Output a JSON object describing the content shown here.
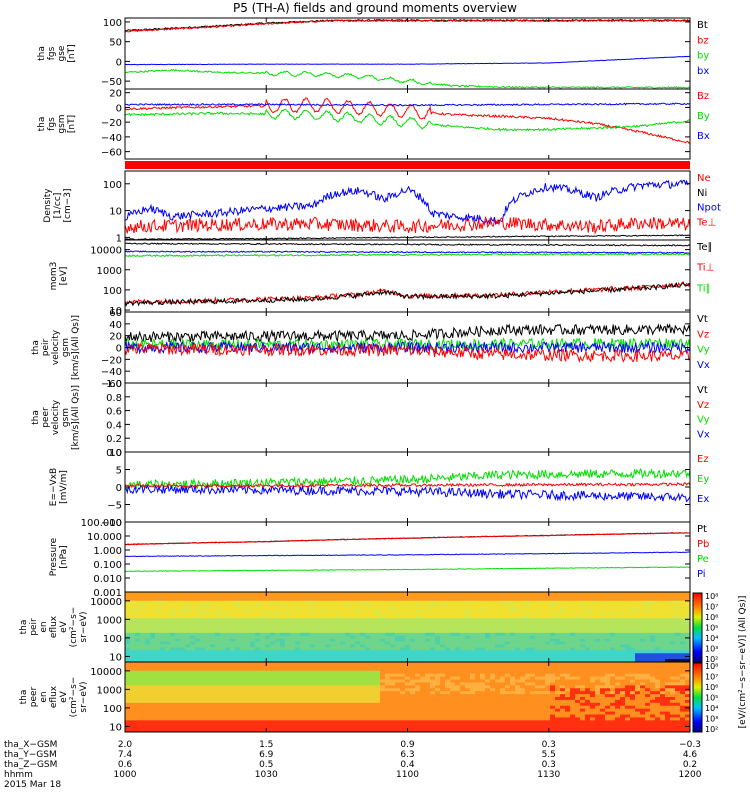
{
  "title": "P5 (TH-A) fields and ground moments overview",
  "date_label": "2015 Mar 18",
  "colors": {
    "black": "#000000",
    "red": "#ff0000",
    "green": "#00dd00",
    "blue": "#0000ff",
    "grid": "#000000"
  },
  "chart_data": [
    {
      "type": "line",
      "id": "fgs_gse",
      "ylabel": [
        "tha",
        "fgs",
        "gse",
        "[nT]"
      ],
      "ylim": [
        -70,
        110
      ],
      "scale": "linear",
      "yticks": [
        {
          "v": 100,
          "t": "100"
        },
        {
          "v": 50,
          "t": "50"
        },
        {
          "v": 0,
          "t": "0"
        },
        {
          "v": -50,
          "t": "−50"
        }
      ],
      "legend": [
        {
          "t": "Bt",
          "c": "black"
        },
        {
          "t": "bz",
          "c": "red"
        },
        {
          "t": "by",
          "c": "green"
        },
        {
          "t": "bx",
          "c": "blue"
        }
      ],
      "series": [
        {
          "name": "Bt",
          "color": "black",
          "x": [
            1000,
            1010,
            1020,
            1030,
            1040,
            1045
          ],
          "y": [
            78,
            84,
            90,
            97,
            102,
            104
          ],
          "noise": 2
        },
        {
          "name": "bz",
          "color": "red",
          "x": [
            1000,
            1010,
            1020,
            1030,
            1040,
            1045
          ],
          "y": [
            76,
            82,
            88,
            95,
            101,
            103
          ],
          "noise": 2
        },
        {
          "name": "by",
          "color": "green",
          "x": [
            1000,
            1010,
            1020,
            1030,
            1040,
            1050,
            1100,
            1110,
            1120,
            1130,
            1140,
            1150,
            1200
          ],
          "y": [
            -28,
            -22,
            -28,
            -30,
            -32,
            -38,
            -50,
            -62,
            -65,
            -66,
            -66,
            -66,
            -66
          ],
          "noise": 2,
          "wave": [
            1030,
            1105,
            10
          ]
        },
        {
          "name": "bx",
          "color": "blue",
          "x": [
            1000,
            1030,
            1100,
            1130,
            1200
          ],
          "y": [
            -8,
            -7,
            -7,
            -4,
            13
          ],
          "noise": 0.5
        }
      ]
    },
    {
      "type": "line",
      "id": "fgs_gsm",
      "ylabel": [
        "tha",
        "fgs",
        "gsm",
        "[nT]"
      ],
      "ylim": [
        -70,
        25
      ],
      "scale": "linear",
      "yticks": [
        {
          "v": 20,
          "t": "20"
        },
        {
          "v": 0,
          "t": "0"
        },
        {
          "v": -20,
          "t": "−20"
        },
        {
          "v": -40,
          "t": "−40"
        },
        {
          "v": -60,
          "t": "−60"
        }
      ],
      "legend": [
        {
          "t": "Bz",
          "c": "red"
        },
        {
          "t": "By",
          "c": "green"
        },
        {
          "t": "Bx",
          "c": "blue"
        }
      ],
      "series": [
        {
          "name": "Bz",
          "color": "red",
          "x": [
            1000,
            1020,
            1040,
            1100,
            1110,
            1120,
            1130,
            1140,
            1150,
            1200
          ],
          "y": [
            -2,
            1,
            3,
            -5,
            -10,
            -12,
            -15,
            -22,
            -34,
            -48
          ],
          "noise": 1.5,
          "wave": [
            1030,
            1105,
            18
          ]
        },
        {
          "name": "By",
          "color": "green",
          "x": [
            1000,
            1020,
            1040,
            1100,
            1110,
            1120,
            1130,
            1140,
            1150,
            1200
          ],
          "y": [
            -10,
            -8,
            -10,
            -20,
            -26,
            -30,
            -30,
            -28,
            -25,
            -18
          ],
          "noise": 1.5,
          "wave": [
            1030,
            1105,
            12
          ]
        },
        {
          "name": "Bx",
          "color": "blue",
          "x": [
            1000,
            1030,
            1100,
            1130,
            1200
          ],
          "y": [
            4,
            4,
            3,
            4,
            5
          ],
          "noise": 1
        }
      ]
    },
    {
      "type": "bar_strip",
      "id": "status",
      "color": "red"
    },
    {
      "type": "line",
      "id": "density",
      "ylabel": [
        "Density",
        "[1/cc]",
        "[cm−3]"
      ],
      "ylim": [
        0.8,
        300
      ],
      "scale": "log",
      "yticks": [
        {
          "v": 100,
          "t": "100"
        },
        {
          "v": 10,
          "t": "10"
        },
        {
          "v": 1,
          "t": "1"
        }
      ],
      "legend": [
        {
          "t": "Ne",
          "c": "red"
        },
        {
          "t": "Ni",
          "c": "black"
        },
        {
          "t": "Npot",
          "c": "blue"
        },
        {
          "t": "Te⊥",
          "c": "red"
        }
      ],
      "series": [
        {
          "name": "Npot",
          "color": "blue",
          "x": [
            1000,
            1005,
            1010,
            1020,
            1030,
            1040,
            1045,
            1050,
            1055,
            1100,
            1105,
            1110,
            1120,
            1130,
            1140,
            1150,
            1200
          ],
          "y": [
            5,
            12,
            6,
            8,
            12,
            15,
            45,
            55,
            25,
            60,
            8,
            6,
            4,
            80,
            30,
            90,
            100
          ],
          "noise": 0.15,
          "lognoise": true
        },
        {
          "name": "Ne",
          "color": "red",
          "x": [
            1000,
            1020,
            1040,
            1100,
            1110,
            1120,
            1130,
            1140,
            1150,
            1200
          ],
          "y": [
            2.5,
            3,
            3.2,
            2.5,
            3,
            3.5,
            3,
            2.5,
            3.5,
            3
          ],
          "noise": 0.25,
          "lognoise": true
        },
        {
          "name": "Ni",
          "color": "black",
          "x": [
            1000,
            1030,
            1100,
            1130,
            1200
          ],
          "y": [
            0.85,
            0.9,
            1.0,
            1.1,
            1.2
          ],
          "noise": 0.02,
          "lognoise": true
        }
      ]
    },
    {
      "type": "line",
      "id": "temp",
      "ylabel": [
        "mom3",
        "[eV]"
      ],
      "ylim": [
        8,
        30000
      ],
      "scale": "log",
      "yticks": [
        {
          "v": 10000,
          "t": "10000"
        },
        {
          "v": 1000,
          "t": "1000"
        },
        {
          "v": 100,
          "t": "100"
        },
        {
          "v": 10,
          "t": "10"
        }
      ],
      "legend": [
        {
          "t": "Te∥",
          "c": "black"
        },
        {
          "t": "Ti⊥",
          "c": "red"
        },
        {
          "t": "Ti∥",
          "c": "green"
        }
      ],
      "series": [
        {
          "name": "Te∥",
          "color": "black",
          "x": [
            1000,
            1030,
            1100,
            1130,
            1200
          ],
          "y": [
            20000,
            19000,
            18000,
            17000,
            16000
          ],
          "noise": 0.03,
          "lognoise": true
        },
        {
          "name": "Ti∥",
          "color": "green",
          "x": [
            1000,
            1030,
            1100,
            1130,
            1200
          ],
          "y": [
            5000,
            5200,
            5500,
            5800,
            6000
          ],
          "noise": 0.04,
          "lognoise": true
        },
        {
          "name": "Te⊥",
          "color": "blue",
          "x": [
            1000,
            1030,
            1100,
            1130,
            1200
          ],
          "y": [
            8000,
            7800,
            7500,
            7200,
            7000
          ],
          "noise": 0.03,
          "lognoise": true
        },
        {
          "name": "Ti⊥",
          "color": "red",
          "x": [
            1000,
            1020,
            1040,
            1050,
            1055,
            1100,
            1120,
            1130,
            1140,
            1150,
            1200
          ],
          "y": [
            25,
            30,
            40,
            60,
            90,
            50,
            55,
            80,
            100,
            130,
            200
          ],
          "noise": 0.12,
          "lognoise": true
        },
        {
          "name": "Te",
          "color": "black",
          "x": [
            1000,
            1020,
            1040,
            1050,
            1055,
            1100,
            1120,
            1130,
            1140,
            1150,
            1200
          ],
          "y": [
            22,
            27,
            35,
            55,
            80,
            45,
            50,
            70,
            90,
            120,
            180
          ],
          "noise": 0.12,
          "lognoise": true
        }
      ]
    },
    {
      "type": "line",
      "id": "peir_vel",
      "ylabel": [
        "tha",
        "peir",
        "velocity",
        "gsm",
        "[km/s](All Qs)]"
      ],
      "ylim": [
        -60,
        60
      ],
      "scale": "linear",
      "yticks": [
        {
          "v": 60,
          "t": "60"
        },
        {
          "v": 40,
          "t": "40"
        },
        {
          "v": 20,
          "t": "20"
        },
        {
          "v": 0,
          "t": "0"
        },
        {
          "v": -20,
          "t": "−20"
        },
        {
          "v": -40,
          "t": "−40"
        },
        {
          "v": -60,
          "t": "−60"
        }
      ],
      "legend": [
        {
          "t": "Vt",
          "c": "black"
        },
        {
          "t": "Vz",
          "c": "red"
        },
        {
          "t": "Vy",
          "c": "green"
        },
        {
          "t": "Vx",
          "c": "blue"
        }
      ],
      "series": [
        {
          "name": "Vt",
          "color": "black",
          "x": [
            1000,
            1100,
            1120,
            1200
          ],
          "y": [
            18,
            20,
            30,
            30
          ],
          "noise": 9
        },
        {
          "name": "Vy",
          "color": "green",
          "x": [
            1000,
            1100,
            1200
          ],
          "y": [
            5,
            5,
            8
          ],
          "noise": 9
        },
        {
          "name": "Vx",
          "color": "blue",
          "x": [
            1000,
            1100,
            1200
          ],
          "y": [
            0,
            0,
            0
          ],
          "noise": 9
        },
        {
          "name": "Vz",
          "color": "red",
          "x": [
            1000,
            1100,
            1120,
            1200
          ],
          "y": [
            -2,
            -5,
            -12,
            -15
          ],
          "noise": 10
        }
      ]
    },
    {
      "type": "line",
      "id": "peer_vel",
      "ylabel": [
        "tha",
        "peer",
        "velocity",
        "gsm",
        "[km/s](All Qs)]"
      ],
      "ylim": [
        0,
        1
      ],
      "scale": "linear",
      "yticks": [
        {
          "v": 1.0,
          "t": "1.0"
        },
        {
          "v": 0.8,
          "t": "0.8"
        },
        {
          "v": 0.6,
          "t": "0.6"
        },
        {
          "v": 0.4,
          "t": "0.4"
        },
        {
          "v": 0.2,
          "t": "0.2"
        },
        {
          "v": 0,
          "t": "0.0"
        }
      ],
      "legend": [
        {
          "t": "Vt",
          "c": "black"
        },
        {
          "t": "Vz",
          "c": "red"
        },
        {
          "t": "Vy",
          "c": "green"
        },
        {
          "t": "Vx",
          "c": "blue"
        }
      ],
      "series": []
    },
    {
      "type": "line",
      "id": "efield",
      "ylabel": [
        "E=−VxB",
        "[mV/m]"
      ],
      "ylim": [
        -10,
        10
      ],
      "scale": "linear",
      "yticks": [
        {
          "v": 10,
          "t": "10"
        },
        {
          "v": 5,
          "t": "5"
        },
        {
          "v": 0,
          "t": "0"
        },
        {
          "v": -5,
          "t": "−5"
        },
        {
          "v": -10,
          "t": "−10"
        }
      ],
      "legend": [
        {
          "t": "Ez",
          "c": "red"
        },
        {
          "t": "Ey",
          "c": "green"
        },
        {
          "t": "Ex",
          "c": "blue"
        }
      ],
      "series": [
        {
          "name": "Ey",
          "color": "green",
          "x": [
            1000,
            1100,
            1120,
            1200
          ],
          "y": [
            0.5,
            2,
            3.5,
            4
          ],
          "noise": 1.3
        },
        {
          "name": "Ex",
          "color": "blue",
          "x": [
            1000,
            1100,
            1120,
            1200
          ],
          "y": [
            -0.5,
            -1.2,
            -2,
            -3
          ],
          "noise": 1.3
        },
        {
          "name": "Ez",
          "color": "red",
          "x": [
            1000,
            1100,
            1200
          ],
          "y": [
            0.3,
            0.5,
            0.8
          ],
          "noise": 0.4
        }
      ]
    },
    {
      "type": "line",
      "id": "pressure",
      "ylabel": [
        "Pressure",
        "[nPa]"
      ],
      "ylim": [
        0.001,
        100
      ],
      "scale": "log",
      "yticks": [
        {
          "v": 100,
          "t": "100.000"
        },
        {
          "v": 10,
          "t": "10.000"
        },
        {
          "v": 1,
          "t": "1.000"
        },
        {
          "v": 0.1,
          "t": "0.100"
        },
        {
          "v": 0.01,
          "t": "0.010"
        },
        {
          "v": 0.001,
          "t": "0.001"
        }
      ],
      "legend": [
        {
          "t": "Pt",
          "c": "black"
        },
        {
          "t": "Pb",
          "c": "red"
        },
        {
          "t": "Pe",
          "c": "green"
        },
        {
          "t": "Pi",
          "c": "blue"
        }
      ],
      "series": [
        {
          "name": "Pt",
          "color": "black",
          "x": [
            1000,
            1030,
            1100,
            1130,
            1200
          ],
          "y": [
            2.5,
            4,
            7,
            11,
            17
          ],
          "noise": 0.02,
          "lognoise": true
        },
        {
          "name": "Pb",
          "color": "red",
          "x": [
            1000,
            1030,
            1100,
            1130,
            1200
          ],
          "y": [
            2.4,
            3.9,
            6.9,
            10.8,
            16.5
          ],
          "noise": 0.02,
          "lognoise": true
        },
        {
          "name": "Pi",
          "color": "blue",
          "x": [
            1000,
            1030,
            1100,
            1130,
            1200
          ],
          "y": [
            0.35,
            0.4,
            0.45,
            0.55,
            0.7
          ],
          "noise": 0.02,
          "lognoise": true
        },
        {
          "name": "Pe",
          "color": "green",
          "x": [
            1000,
            1030,
            1100,
            1130,
            1200
          ],
          "y": [
            0.03,
            0.035,
            0.04,
            0.05,
            0.06
          ],
          "noise": 0.02,
          "lognoise": true
        }
      ]
    },
    {
      "type": "heatmap",
      "id": "peir_en",
      "ylabel": [
        "tha",
        "peir",
        "en",
        "eflux",
        "eV",
        "(cm²−s−",
        "sr−eV)"
      ],
      "ylim": [
        5,
        30000
      ],
      "scale": "log",
      "yticks": [
        {
          "v": 10000,
          "t": "10000"
        },
        {
          "v": 1000,
          "t": "1000"
        },
        {
          "v": 100,
          "t": "100"
        },
        {
          "v": 10,
          "t": "10"
        }
      ],
      "variant": "ion"
    },
    {
      "type": "heatmap",
      "id": "peer_en",
      "ylabel": [
        "tha",
        "peer",
        "en",
        "eflux",
        "eV",
        "(cm²−s−",
        "sr−eV)"
      ],
      "ylim": [
        5,
        30000
      ],
      "scale": "log",
      "yticks": [
        {
          "v": 10000,
          "t": "10000"
        },
        {
          "v": 1000,
          "t": "1000"
        },
        {
          "v": 100,
          "t": "100"
        },
        {
          "v": 10,
          "t": "10"
        }
      ],
      "variant": "electron"
    }
  ],
  "colorbar": {
    "ticks": [
      "10⁸",
      "10⁷",
      "10⁶",
      "10⁵",
      "10⁴",
      "10³",
      "10²"
    ],
    "label": "[eV/(cm²−s−sr−eV)] (All Qs)]"
  },
  "xaxis": {
    "range": [
      1000,
      1200
    ],
    "ticks": [
      1000,
      1030,
      1100,
      1130,
      1200
    ],
    "rows": [
      {
        "label": "tha_X−GSM",
        "values": [
          "2.0",
          "1.5",
          "0.9",
          "0.3",
          "−0.3"
        ]
      },
      {
        "label": "tha_Y−GSM",
        "values": [
          "7.4",
          "6.9",
          "6.3",
          "5.5",
          "4.6"
        ]
      },
      {
        "label": "tha_Z−GSM",
        "values": [
          "0.6",
          "0.5",
          "0.4",
          "0.3",
          "0.2"
        ]
      },
      {
        "label": "hhmm",
        "values": [
          "1000",
          "1030",
          "1100",
          "1130",
          "1200"
        ]
      }
    ]
  }
}
